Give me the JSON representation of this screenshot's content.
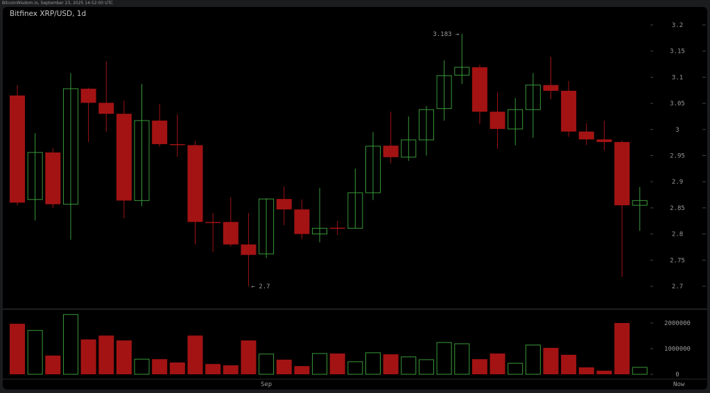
{
  "header": {
    "source_line": "BitcoinWisdom.io, September 23, 2025 14:52:00 UTC"
  },
  "chart_data": {
    "type": "candlestick",
    "title": "Bitfinex XRP/USD, 1d",
    "ylim": [
      2.68,
      3.22
    ],
    "y_ticks": [
      "3.2",
      "3.15",
      "3.1",
      "3.05",
      "3",
      "2.95",
      "2.9",
      "2.85",
      "2.8",
      "2.75",
      "2.7"
    ],
    "y_tick_values": [
      3.2,
      3.15,
      3.1,
      3.05,
      3.0,
      2.95,
      2.9,
      2.85,
      2.8,
      2.75,
      2.7
    ],
    "x_labels": [
      {
        "label": "Sep",
        "index": 14
      },
      {
        "label": "Now",
        "index": 37.2
      }
    ],
    "annotations": {
      "high_label": "3.183 →",
      "high_value": 3.183,
      "high_index": 25,
      "low_label": "← 2.7",
      "low_value": 2.7,
      "low_index": 13
    },
    "colors": {
      "up": "#3a9a3a",
      "down": "#a31313",
      "text": "#9a9a9a"
    },
    "candles": [
      {
        "o": 3.065,
        "h": 3.085,
        "l": 2.855,
        "c": 2.86
      },
      {
        "o": 2.866,
        "h": 2.993,
        "l": 2.826,
        "c": 2.956
      },
      {
        "o": 2.956,
        "h": 2.964,
        "l": 2.85,
        "c": 2.857
      },
      {
        "o": 2.857,
        "h": 3.108,
        "l": 2.789,
        "c": 3.078
      },
      {
        "o": 3.078,
        "h": 3.08,
        "l": 2.976,
        "c": 3.051
      },
      {
        "o": 3.051,
        "h": 3.13,
        "l": 2.996,
        "c": 3.03
      },
      {
        "o": 3.03,
        "h": 3.055,
        "l": 2.83,
        "c": 2.864
      },
      {
        "o": 2.864,
        "h": 3.087,
        "l": 2.853,
        "c": 3.017
      },
      {
        "o": 3.017,
        "h": 3.049,
        "l": 2.967,
        "c": 2.972
      },
      {
        "o": 2.972,
        "h": 3.029,
        "l": 2.948,
        "c": 2.971
      },
      {
        "o": 2.97,
        "h": 2.978,
        "l": 2.78,
        "c": 2.823
      },
      {
        "o": 2.823,
        "h": 2.84,
        "l": 2.766,
        "c": 2.822
      },
      {
        "o": 2.823,
        "h": 2.87,
        "l": 2.776,
        "c": 2.78
      },
      {
        "o": 2.78,
        "h": 2.84,
        "l": 2.7,
        "c": 2.76
      },
      {
        "o": 2.762,
        "h": 2.868,
        "l": 2.754,
        "c": 2.867
      },
      {
        "o": 2.867,
        "h": 2.891,
        "l": 2.817,
        "c": 2.847
      },
      {
        "o": 2.847,
        "h": 2.866,
        "l": 2.79,
        "c": 2.8
      },
      {
        "o": 2.8,
        "h": 2.888,
        "l": 2.784,
        "c": 2.811
      },
      {
        "o": 2.812,
        "h": 2.825,
        "l": 2.798,
        "c": 2.811
      },
      {
        "o": 2.811,
        "h": 2.925,
        "l": 2.811,
        "c": 2.879
      },
      {
        "o": 2.879,
        "h": 2.995,
        "l": 2.865,
        "c": 2.968
      },
      {
        "o": 2.969,
        "h": 3.034,
        "l": 2.935,
        "c": 2.947
      },
      {
        "o": 2.947,
        "h": 3.025,
        "l": 2.94,
        "c": 2.98
      },
      {
        "o": 2.98,
        "h": 3.045,
        "l": 2.95,
        "c": 3.038
      },
      {
        "o": 3.04,
        "h": 3.132,
        "l": 3.017,
        "c": 3.103
      },
      {
        "o": 3.104,
        "h": 3.183,
        "l": 3.087,
        "c": 3.119
      },
      {
        "o": 3.119,
        "h": 3.124,
        "l": 3.01,
        "c": 3.034
      },
      {
        "o": 3.034,
        "h": 3.071,
        "l": 2.963,
        "c": 3.001
      },
      {
        "o": 3.001,
        "h": 3.06,
        "l": 2.97,
        "c": 3.038
      },
      {
        "o": 3.038,
        "h": 3.108,
        "l": 2.984,
        "c": 3.085
      },
      {
        "o": 3.085,
        "h": 3.139,
        "l": 3.058,
        "c": 3.074
      },
      {
        "o": 3.074,
        "h": 3.093,
        "l": 2.986,
        "c": 2.996
      },
      {
        "o": 2.996,
        "h": 3.012,
        "l": 2.97,
        "c": 2.981
      },
      {
        "o": 2.981,
        "h": 3.017,
        "l": 2.96,
        "c": 2.976
      },
      {
        "o": 2.976,
        "h": 2.979,
        "l": 2.718,
        "c": 2.855
      },
      {
        "o": 2.855,
        "h": 2.89,
        "l": 2.806,
        "c": 2.864
      }
    ],
    "volume": {
      "ylim": [
        0,
        2500000
      ],
      "y_ticks": [
        "2000000",
        "1000000",
        "0"
      ],
      "y_tick_values": [
        2000000,
        1000000,
        0
      ],
      "values": [
        1970000,
        1710000,
        730000,
        2330000,
        1360000,
        1510000,
        1320000,
        590000,
        590000,
        460000,
        1510000,
        400000,
        350000,
        1320000,
        790000,
        570000,
        320000,
        810000,
        810000,
        490000,
        840000,
        780000,
        680000,
        570000,
        1240000,
        1190000,
        590000,
        810000,
        430000,
        1140000,
        1030000,
        760000,
        270000,
        140000,
        2000000,
        270000
      ]
    }
  }
}
